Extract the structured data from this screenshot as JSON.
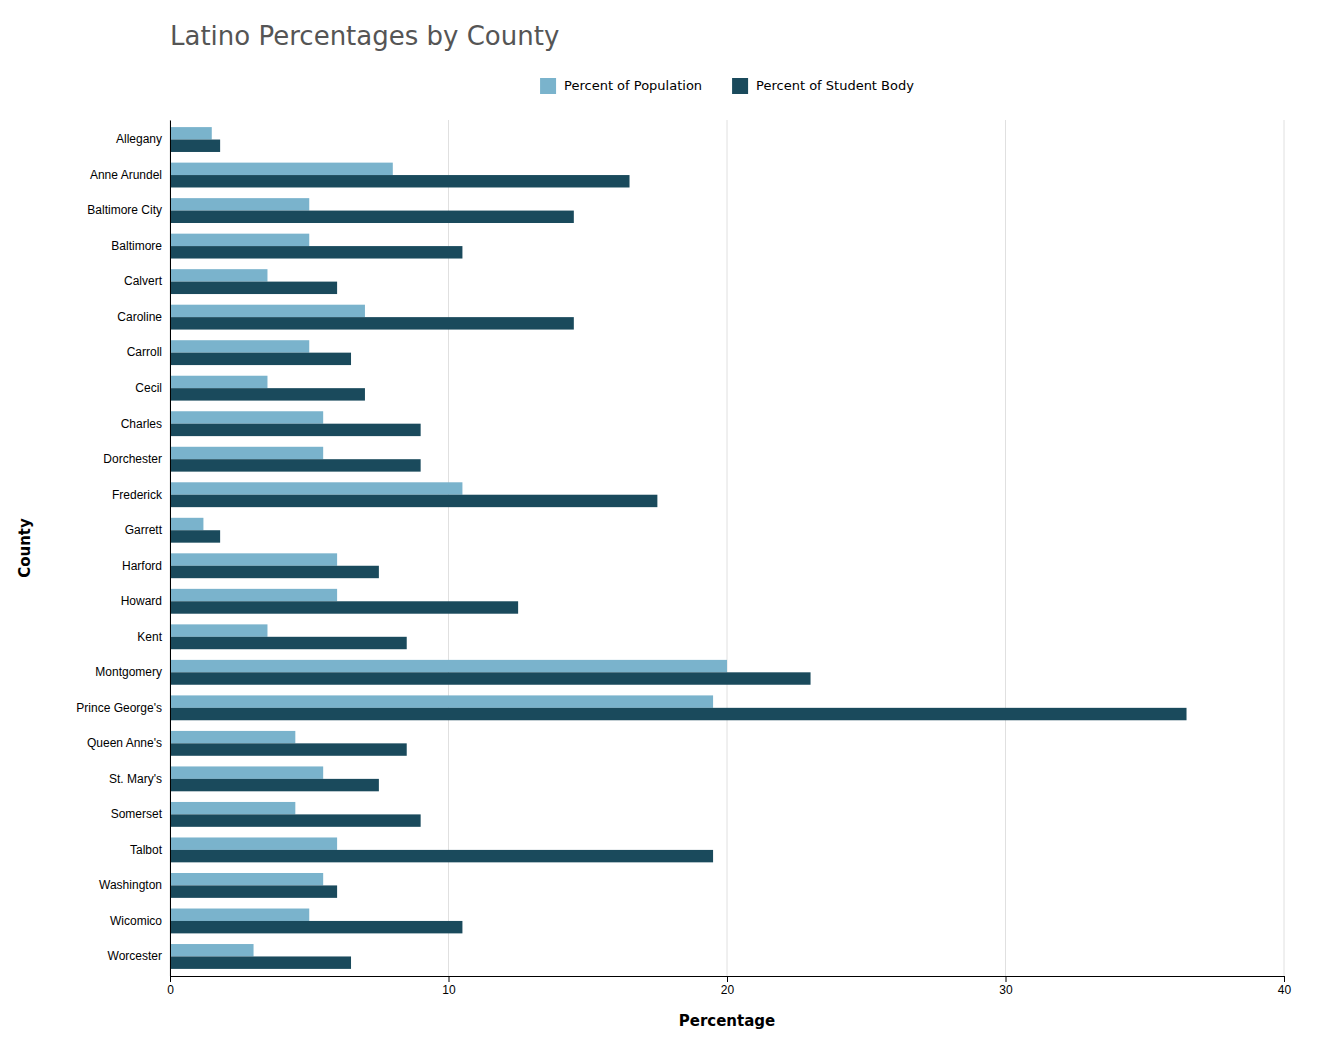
{
  "chart_data": {
    "type": "bar",
    "orientation": "horizontal",
    "title": "Latino Percentages by County",
    "xlabel": "Percentage",
    "ylabel": "County",
    "categories": [
      "Allegany",
      "Anne Arundel",
      "Baltimore City",
      "Baltimore",
      "Calvert",
      "Caroline",
      "Carroll",
      "Cecil",
      "Charles",
      "Dorchester",
      "Frederick",
      "Garrett",
      "Harford",
      "Howard",
      "Kent",
      "Montgomery",
      "Prince George's",
      "Queen Anne's",
      "St. Mary's",
      "Somerset",
      "Talbot",
      "Washington",
      "Wicomico",
      "Worcester"
    ],
    "series": [
      {
        "name": "Percent of Population",
        "color": "#7ab3cc",
        "values": [
          1.5,
          8.0,
          5.0,
          5.0,
          3.5,
          7.0,
          5.0,
          3.5,
          5.5,
          5.5,
          10.5,
          1.2,
          6.0,
          6.0,
          3.5,
          20.0,
          19.5,
          4.5,
          5.5,
          4.5,
          6.0,
          5.5,
          5.0,
          3.0
        ]
      },
      {
        "name": "Percent of Student Body",
        "color": "#1a4a5c",
        "values": [
          1.8,
          16.5,
          14.5,
          10.5,
          6.0,
          14.5,
          6.5,
          7.0,
          9.0,
          9.0,
          17.5,
          1.8,
          7.5,
          12.5,
          8.5,
          23.0,
          36.5,
          8.5,
          7.5,
          9.0,
          19.5,
          6.0,
          10.5,
          6.5
        ]
      }
    ],
    "xlim": [
      0,
      40
    ],
    "xticks": [
      0,
      10,
      20,
      30,
      40
    ],
    "grid": true,
    "legend": "top"
  }
}
